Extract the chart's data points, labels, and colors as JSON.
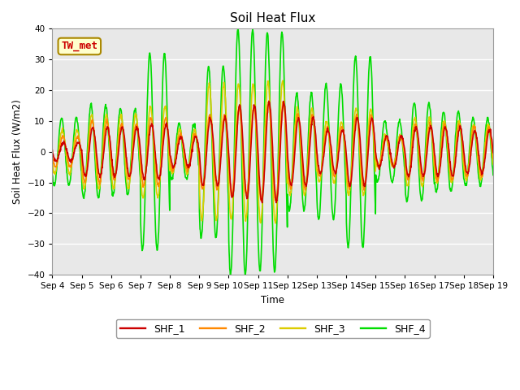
{
  "title": "Soil Heat Flux",
  "ylabel": "Soil Heat Flux (W/m2)",
  "xlabel": "Time",
  "annotation": "TW_met",
  "ylim": [
    -40,
    40
  ],
  "yticks": [
    -40,
    -30,
    -20,
    -10,
    0,
    10,
    20,
    30,
    40
  ],
  "xtick_labels": [
    "Sep 4",
    "Sep 5",
    "Sep 6",
    "Sep 7",
    "Sep 8",
    "Sep 9",
    "Sep 10",
    "Sep 11",
    "Sep 12",
    "Sep 13",
    "Sep 14",
    "Sep 15",
    "Sep 16",
    "Sep 17",
    "Sep 18",
    "Sep 19"
  ],
  "colors": {
    "SHF_1": "#cc0000",
    "SHF_2": "#ff8800",
    "SHF_3": "#ddcc00",
    "SHF_4": "#00dd00"
  },
  "bg_color": "#e8e8e8",
  "line_width": 1.2,
  "days": 15,
  "points_per_day": 96,
  "amp_SHF1": [
    3,
    8,
    8,
    9,
    5,
    11,
    15,
    16,
    11,
    7,
    11,
    5,
    8,
    8,
    7
  ],
  "amp_SHF2": [
    5,
    10,
    9,
    11,
    6,
    12,
    14,
    16,
    12,
    8,
    12,
    5,
    9,
    9,
    8
  ],
  "amp_SHF3": [
    7,
    12,
    12,
    15,
    7,
    22,
    22,
    23,
    14,
    10,
    14,
    5,
    11,
    10,
    9
  ],
  "amp_SHF4": [
    11,
    15,
    14,
    32,
    9,
    28,
    40,
    39,
    19,
    22,
    31,
    10,
    16,
    13,
    11
  ],
  "phase1": 0.0,
  "phase2": 0.02,
  "phase3": 0.04,
  "phase4": 0.06
}
